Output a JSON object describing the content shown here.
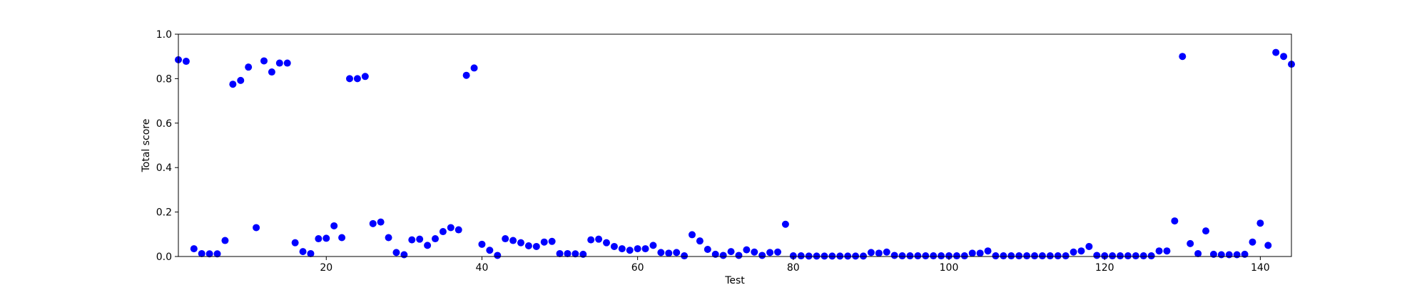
{
  "chart_data": {
    "type": "scatter",
    "xlabel": "Test",
    "ylabel": "Total score",
    "xlim": [
      1,
      144
    ],
    "ylim": [
      0,
      1
    ],
    "x_ticks": [
      20,
      40,
      60,
      80,
      100,
      120,
      140
    ],
    "y_ticks": [
      0.0,
      0.2,
      0.4,
      0.6,
      0.8,
      1.0
    ],
    "x_tick_labels": [
      "20",
      "40",
      "60",
      "80",
      "100",
      "120",
      "140"
    ],
    "y_tick_labels": [
      "0.0",
      "0.2",
      "0.4",
      "0.6",
      "0.8",
      "1.0"
    ],
    "grid": false,
    "marker_color": "#0000ff",
    "x": [
      1,
      2,
      3,
      4,
      5,
      6,
      7,
      8,
      9,
      10,
      11,
      12,
      13,
      14,
      15,
      16,
      17,
      18,
      19,
      20,
      21,
      22,
      23,
      24,
      25,
      26,
      27,
      28,
      29,
      30,
      31,
      32,
      33,
      34,
      35,
      36,
      37,
      38,
      39,
      40,
      41,
      42,
      43,
      44,
      45,
      46,
      47,
      48,
      49,
      50,
      51,
      52,
      53,
      54,
      55,
      56,
      57,
      58,
      59,
      60,
      61,
      62,
      63,
      64,
      65,
      66,
      67,
      68,
      69,
      70,
      71,
      72,
      73,
      74,
      75,
      76,
      77,
      78,
      79,
      80,
      81,
      82,
      83,
      84,
      85,
      86,
      87,
      88,
      89,
      90,
      91,
      92,
      93,
      94,
      95,
      96,
      97,
      98,
      99,
      100,
      101,
      102,
      103,
      104,
      105,
      106,
      107,
      108,
      109,
      110,
      111,
      112,
      113,
      114,
      115,
      116,
      117,
      118,
      119,
      120,
      121,
      122,
      123,
      124,
      125,
      126,
      127,
      128,
      129,
      130,
      131,
      132,
      133,
      134,
      135,
      136,
      137,
      138,
      139,
      140,
      141,
      142,
      143,
      144
    ],
    "y": [
      0.885,
      0.878,
      0.035,
      0.013,
      0.012,
      0.012,
      0.072,
      0.775,
      0.792,
      0.852,
      0.13,
      0.88,
      0.83,
      0.87,
      0.87,
      0.062,
      0.022,
      0.013,
      0.08,
      0.082,
      0.138,
      0.085,
      0.8,
      0.8,
      0.81,
      0.148,
      0.155,
      0.085,
      0.018,
      0.008,
      0.075,
      0.078,
      0.05,
      0.08,
      0.112,
      0.13,
      0.12,
      0.815,
      0.848,
      0.055,
      0.028,
      0.005,
      0.08,
      0.072,
      0.062,
      0.048,
      0.045,
      0.065,
      0.068,
      0.013,
      0.013,
      0.012,
      0.01,
      0.075,
      0.078,
      0.062,
      0.045,
      0.035,
      0.028,
      0.035,
      0.035,
      0.05,
      0.018,
      0.015,
      0.018,
      0.003,
      0.098,
      0.07,
      0.032,
      0.01,
      0.005,
      0.022,
      0.005,
      0.03,
      0.02,
      0.005,
      0.018,
      0.02,
      0.145,
      0.003,
      0.003,
      0.002,
      0.002,
      0.002,
      0.002,
      0.002,
      0.002,
      0.002,
      0.002,
      0.018,
      0.015,
      0.02,
      0.005,
      0.003,
      0.003,
      0.003,
      0.003,
      0.003,
      0.003,
      0.003,
      0.003,
      0.003,
      0.015,
      0.015,
      0.025,
      0.003,
      0.003,
      0.003,
      0.003,
      0.003,
      0.003,
      0.003,
      0.003,
      0.003,
      0.003,
      0.02,
      0.025,
      0.045,
      0.005,
      0.003,
      0.003,
      0.003,
      0.003,
      0.003,
      0.003,
      0.003,
      0.025,
      0.025,
      0.16,
      0.9,
      0.058,
      0.013,
      0.115,
      0.01,
      0.008,
      0.008,
      0.008,
      0.01,
      0.065,
      0.15,
      0.05,
      0.918,
      0.9,
      0.865
    ]
  }
}
